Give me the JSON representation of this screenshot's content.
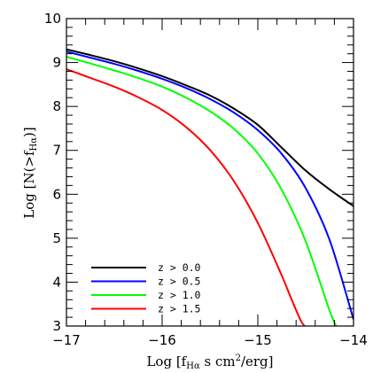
{
  "chart_data": {
    "type": "line",
    "xlabel": {
      "pre": "Log [f",
      "sub": "Hα",
      "mid": " s cm",
      "sup": "2",
      "post": "/erg]"
    },
    "ylabel": {
      "pre": "Log [N(>f",
      "sub": "Hα",
      "post": ")]"
    },
    "xlim": [
      -17,
      -14
    ],
    "ylim": [
      3,
      10
    ],
    "x_ticks": [
      -17,
      -16,
      -15,
      -14
    ],
    "x_tick_labels": [
      "−17",
      "−16",
      "−15",
      "−14"
    ],
    "y_ticks": [
      3,
      4,
      5,
      6,
      7,
      8,
      9,
      10
    ],
    "y_tick_labels": [
      "3",
      "4",
      "5",
      "6",
      "7",
      "8",
      "9",
      "10"
    ],
    "grid": false,
    "legend_position": "bottom-left",
    "series": [
      {
        "name": "z > 0.0",
        "color": "#000000",
        "x": [
          -17.0,
          -16.75,
          -16.5,
          -16.25,
          -16.0,
          -15.75,
          -15.5,
          -15.25,
          -15.0,
          -14.75,
          -14.5,
          -14.25,
          -14.0
        ],
        "y": [
          9.3,
          9.17,
          9.03,
          8.87,
          8.69,
          8.48,
          8.25,
          7.95,
          7.58,
          7.06,
          6.54,
          6.11,
          5.73
        ]
      },
      {
        "name": "z > 0.5",
        "color": "#0000ff",
        "x": [
          -17.0,
          -16.75,
          -16.5,
          -16.25,
          -16.0,
          -15.75,
          -15.5,
          -15.25,
          -15.0,
          -14.75,
          -14.5,
          -14.25,
          -14.0
        ],
        "y": [
          9.25,
          9.11,
          8.97,
          8.81,
          8.63,
          8.42,
          8.17,
          7.86,
          7.46,
          6.92,
          6.14,
          4.96,
          3.15
        ]
      },
      {
        "name": "z > 1.0",
        "color": "#00ff00",
        "x": [
          -17.0,
          -16.75,
          -16.5,
          -16.25,
          -16.0,
          -15.75,
          -15.5,
          -15.25,
          -15.0,
          -14.75,
          -14.5,
          -14.25,
          -14.18
        ],
        "y": [
          9.13,
          8.98,
          8.82,
          8.65,
          8.45,
          8.2,
          7.89,
          7.49,
          6.93,
          6.1,
          4.93,
          3.35,
          3.0
        ]
      },
      {
        "name": "z > 1.5",
        "color": "#ff0000",
        "x": [
          -17.0,
          -16.75,
          -16.5,
          -16.25,
          -16.0,
          -15.75,
          -15.5,
          -15.25,
          -15.0,
          -14.75,
          -14.65,
          -14.55,
          -14.5
        ],
        "y": [
          8.85,
          8.65,
          8.45,
          8.21,
          7.92,
          7.53,
          7.01,
          6.3,
          5.35,
          4.15,
          3.62,
          3.12,
          2.98
        ]
      }
    ]
  }
}
